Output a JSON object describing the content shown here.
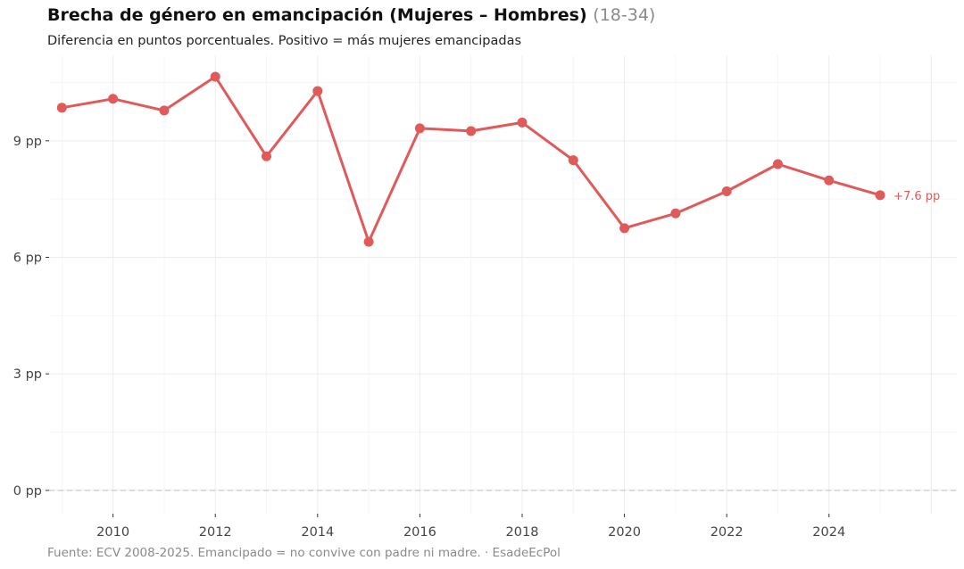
{
  "header": {
    "title": "Brecha de género en emancipación (Mujeres – Hombres)",
    "title_range": "(18-34)",
    "subtitle": "Diferencia en puntos porcentuales. Positivo = más mujeres emancipadas"
  },
  "footer": {
    "caption": "Fuente: ECV 2008-2025. Emancipado = no convive con padre ni madre. · EsadeEcPol"
  },
  "chart_data": {
    "type": "line",
    "x": [
      2009,
      2010,
      2011,
      2012,
      2013,
      2014,
      2015,
      2016,
      2017,
      2018,
      2019,
      2020,
      2021,
      2022,
      2023,
      2024,
      2025
    ],
    "series": [
      {
        "values": [
          9.85,
          10.08,
          9.78,
          10.65,
          8.6,
          10.28,
          6.4,
          9.32,
          9.25,
          9.47,
          8.5,
          6.75,
          7.13,
          7.7,
          8.4,
          7.98,
          7.6
        ],
        "color": "#e05a5a"
      }
    ],
    "end_label": "+7.6 pp",
    "x_ticks": [
      "2010",
      "2012",
      "2014",
      "2016",
      "2018",
      "2020",
      "2022",
      "2024"
    ],
    "x_tick_values": [
      2010,
      2012,
      2014,
      2016,
      2018,
      2020,
      2022,
      2024
    ],
    "y_ticks": [
      "0 pp",
      "3 pp",
      "6 pp",
      "9 pp"
    ],
    "y_tick_values": [
      0,
      3,
      6,
      9
    ],
    "xlim": [
      2008.75,
      2026.5
    ],
    "ylim": [
      -0.6,
      11.2
    ],
    "zero_line": "dashed",
    "grid": true
  }
}
